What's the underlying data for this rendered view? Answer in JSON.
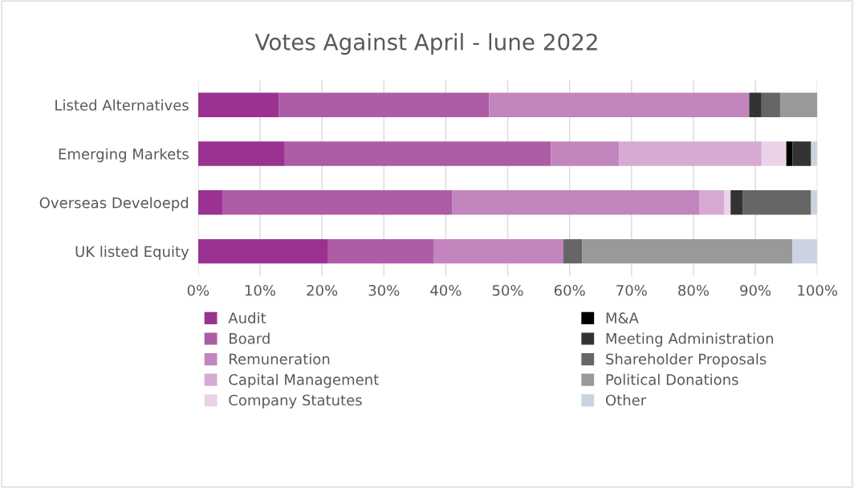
{
  "chart_data": {
    "type": "bar",
    "orientation": "horizontal",
    "stacked": true,
    "title": "Votes Against April - lune 2022",
    "categories": [
      "Listed Alternatives",
      "Emerging Markets",
      "Overseas Develoepd",
      "UK listed Equity"
    ],
    "series": [
      {
        "name": "Audit",
        "color": "#9b3190",
        "values": [
          13,
          14,
          4,
          21
        ]
      },
      {
        "name": "Board",
        "color": "#ad5ca6",
        "values": [
          34,
          43,
          37,
          17
        ]
      },
      {
        "name": "Remuneration",
        "color": "#c285bd",
        "values": [
          42,
          11,
          40,
          21
        ]
      },
      {
        "name": "Capital Management",
        "color": "#d6aad2",
        "values": [
          0,
          23,
          4,
          0
        ]
      },
      {
        "name": "Company Statutes",
        "color": "#ead3e7",
        "values": [
          0,
          4,
          1,
          0
        ]
      },
      {
        "name": "M&A",
        "color": "#000000",
        "values": [
          0,
          1,
          0,
          0
        ]
      },
      {
        "name": "Meeting Administration",
        "color": "#333333",
        "values": [
          2,
          3,
          2,
          0
        ]
      },
      {
        "name": "Shareholder Proposals",
        "color": "#666666",
        "values": [
          3,
          0,
          11,
          3
        ]
      },
      {
        "name": "Political Donations",
        "color": "#999999",
        "values": [
          6,
          0,
          0,
          34
        ]
      },
      {
        "name": "Other",
        "color": "#ccd3e0",
        "values": [
          0,
          1,
          1,
          4
        ]
      }
    ],
    "xlim": [
      0,
      100
    ],
    "xticks": [
      {
        "value": 0,
        "label": "0%"
      },
      {
        "value": 10,
        "label": "10%"
      },
      {
        "value": 20,
        "label": "20%"
      },
      {
        "value": 30,
        "label": "30%"
      },
      {
        "value": 40,
        "label": "40%"
      },
      {
        "value": 50,
        "label": "50%"
      },
      {
        "value": 60,
        "label": "60%"
      },
      {
        "value": 70,
        "label": "70%"
      },
      {
        "value": 80,
        "label": "80%"
      },
      {
        "value": 90,
        "label": "90%"
      },
      {
        "value": 100,
        "label": "100%"
      }
    ],
    "grid": "x",
    "legend": "bottom"
  }
}
